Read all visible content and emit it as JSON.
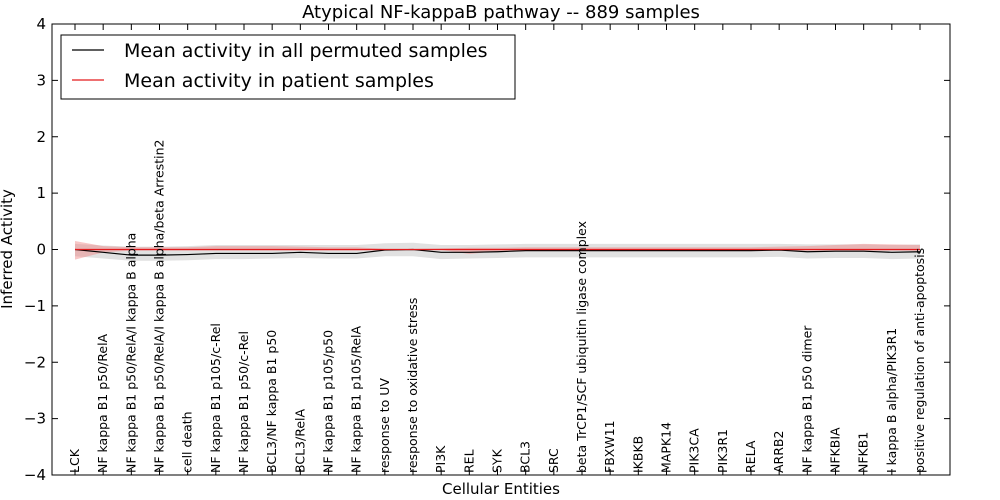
{
  "chart_data": {
    "type": "line",
    "title": "Atypical NF-kappaB pathway -- 889 samples",
    "xlabel": "Cellular Entities",
    "ylabel": "Inferred Activity",
    "ylim": [
      -4,
      4
    ],
    "yticks": [
      -4,
      -3,
      -2,
      -1,
      0,
      1,
      2,
      3,
      4
    ],
    "ytick_labels": [
      "−4",
      "−3",
      "−2",
      "−1",
      "0",
      "1",
      "2",
      "3",
      "4"
    ],
    "grid": false,
    "legend_position": "top-left",
    "categories": [
      "LCK",
      "NF kappa B1 p50/RelA",
      "NF kappa B1 p50/RelA/I kappa B alpha",
      "NF kappa B1 p50/RelA/I kappa B alpha/beta Arrestin2",
      "cell death",
      "NF kappa B1 p105/c-Rel",
      "NF kappa B1 p50/c-Rel",
      "BCL3/NF kappa B1 p50",
      "BCL3/RelA",
      "NF kappa B1 p105/p50",
      "NF kappa B1 p105/RelA",
      "response to UV",
      "response to oxidative stress",
      "PI3K",
      "REL",
      "SYK",
      "BCL3",
      "SRC",
      "beta TrCP1/SCF ubiquitin ligase complex",
      "FBXW11",
      "IKBKB",
      "MAPK14",
      "PIK3CA",
      "PIK3R1",
      "RELA",
      "ARRB2",
      "NF kappa B1 p50 dimer",
      "NFKBIA",
      "NFKB1",
      "I kappa B alpha/PIK3R1",
      "positive regulation of anti-apoptosis"
    ],
    "series": [
      {
        "name": "Mean activity in all permuted samples",
        "color": "#000000",
        "band_color": "#c8c8c8",
        "values": [
          0.0,
          -0.05,
          -0.1,
          -0.1,
          -0.09,
          -0.07,
          -0.07,
          -0.07,
          -0.05,
          -0.07,
          -0.07,
          -0.01,
          0.0,
          -0.05,
          -0.05,
          -0.04,
          -0.02,
          -0.02,
          -0.02,
          -0.02,
          -0.02,
          -0.02,
          -0.02,
          -0.02,
          -0.02,
          -0.01,
          -0.04,
          -0.03,
          -0.03,
          -0.05,
          -0.04
        ],
        "lower": [
          -0.12,
          -0.16,
          -0.2,
          -0.2,
          -0.19,
          -0.17,
          -0.17,
          -0.16,
          -0.15,
          -0.16,
          -0.16,
          -0.12,
          -0.12,
          -0.17,
          -0.16,
          -0.15,
          -0.14,
          -0.14,
          -0.14,
          -0.14,
          -0.14,
          -0.14,
          -0.14,
          -0.14,
          -0.14,
          -0.13,
          -0.16,
          -0.15,
          -0.15,
          -0.17,
          -0.16
        ],
        "upper": [
          0.1,
          0.07,
          0.05,
          0.05,
          0.06,
          0.08,
          0.08,
          0.08,
          0.08,
          0.08,
          0.08,
          0.11,
          0.12,
          0.08,
          0.08,
          0.09,
          0.1,
          0.1,
          0.1,
          0.1,
          0.1,
          0.1,
          0.1,
          0.1,
          0.1,
          0.1,
          0.09,
          0.09,
          0.09,
          0.08,
          0.09
        ]
      },
      {
        "name": "Mean activity in patient samples",
        "color": "#e31a1c",
        "band_color": "#f08080",
        "values": [
          0.0,
          0.0,
          0.0,
          0.0,
          0.0,
          0.0,
          0.0,
          0.0,
          0.0,
          0.0,
          0.0,
          0.0,
          0.0,
          0.0,
          0.0,
          0.0,
          0.0,
          0.0,
          0.0,
          0.0,
          0.0,
          0.0,
          0.0,
          0.0,
          0.0,
          0.0,
          0.0,
          0.0,
          0.0,
          0.0,
          0.0
        ],
        "lower": [
          -0.18,
          -0.05,
          -0.02,
          -0.02,
          -0.02,
          -0.02,
          -0.02,
          -0.02,
          -0.02,
          -0.02,
          -0.02,
          -0.01,
          -0.01,
          -0.01,
          -0.08,
          -0.03,
          -0.02,
          -0.02,
          -0.02,
          -0.02,
          -0.02,
          -0.02,
          -0.02,
          -0.02,
          -0.02,
          -0.02,
          -0.02,
          -0.02,
          -0.02,
          -0.02,
          -0.02
        ],
        "upper": [
          0.15,
          0.06,
          0.04,
          0.04,
          0.04,
          0.06,
          0.06,
          0.06,
          0.05,
          0.04,
          0.04,
          0.01,
          0.01,
          0.02,
          0.03,
          0.03,
          0.04,
          0.04,
          0.04,
          0.04,
          0.04,
          0.04,
          0.04,
          0.04,
          0.04,
          0.05,
          0.06,
          0.08,
          0.1,
          0.09,
          0.08
        ]
      }
    ]
  }
}
